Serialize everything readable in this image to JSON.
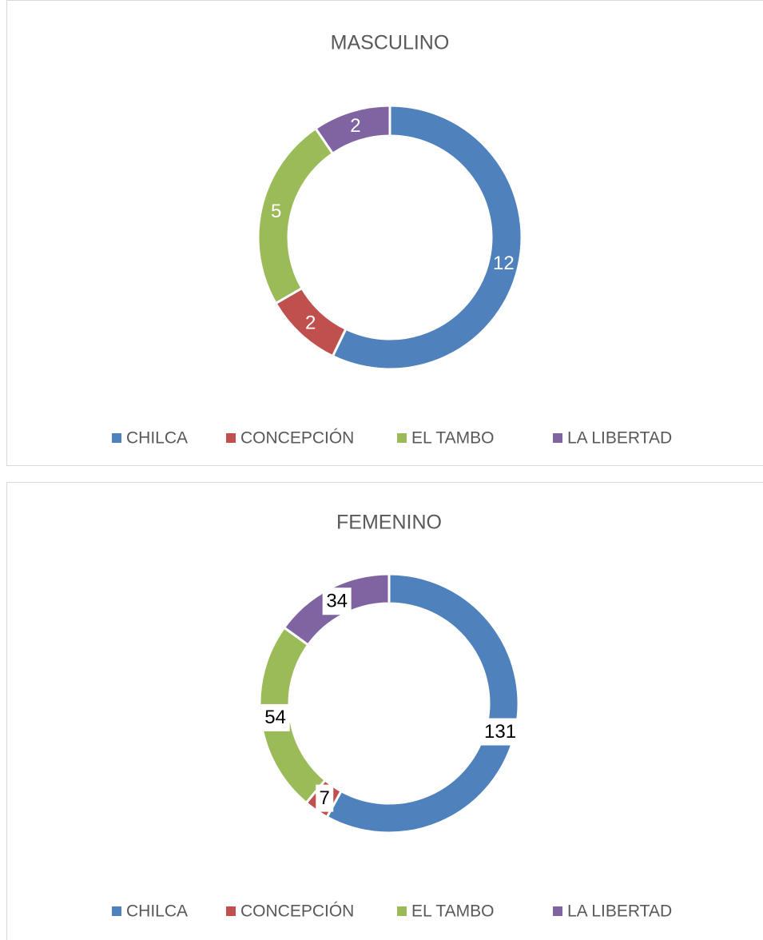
{
  "chart_data": [
    {
      "type": "donut",
      "title": "MASCULINO",
      "label_style": "inside",
      "categories": [
        "CHILCA",
        "CONCEPCIÓN",
        "EL TAMBO",
        "LA LIBERTAD"
      ],
      "series": [
        {
          "name": "MASCULINO",
          "colors": [
            "#4f81bd",
            "#c0504d",
            "#9bbb59",
            "#8064a2"
          ],
          "values": [
            12,
            2,
            5,
            2
          ]
        }
      ]
    },
    {
      "type": "donut",
      "title": "FEMENINO",
      "label_style": "boxed",
      "categories": [
        "CHILCA",
        "CONCEPCIÓN",
        "EL TAMBO",
        "LA LIBERTAD"
      ],
      "series": [
        {
          "name": "FEMENINO",
          "colors": [
            "#4f81bd",
            "#c0504d",
            "#9bbb59",
            "#8064a2"
          ],
          "values": [
            131,
            7,
            54,
            34
          ]
        }
      ]
    }
  ]
}
